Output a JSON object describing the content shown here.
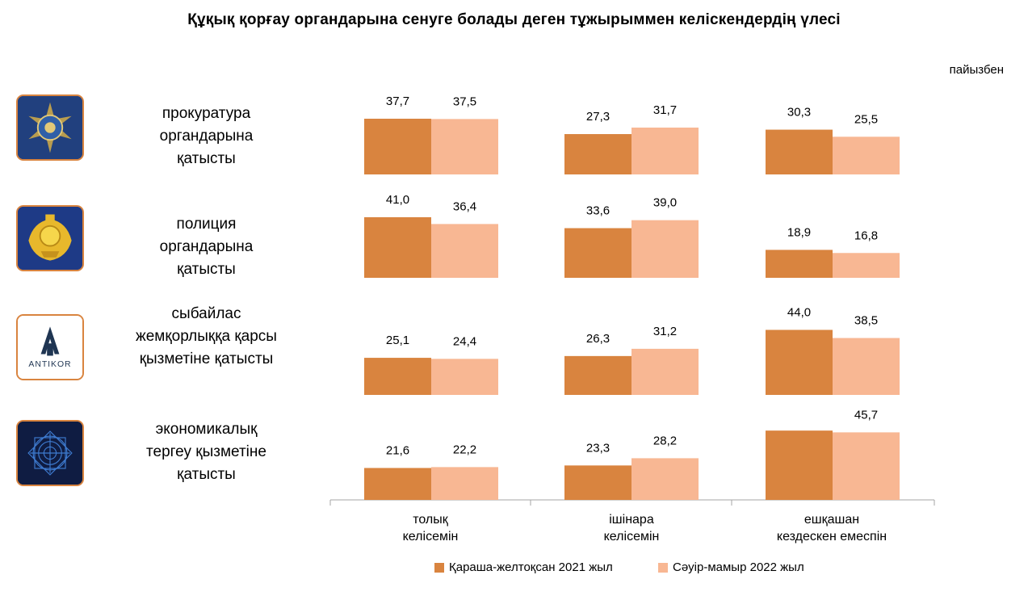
{
  "title": "Құқық қорғау органдарына сенуге болады деген тұжырыммен келіскендердің үлесі",
  "unit_note": "пайызбен",
  "colors": {
    "series1": "#D9843F",
    "series2": "#F8B793",
    "axis": "#A6A6A6"
  },
  "rows": [
    {
      "label": "прокуратура\nоргандарына\nқатысты",
      "icon": "prosecutor-emblem-icon"
    },
    {
      "label": "полиция\nоргандарына\nқатысты",
      "icon": "police-emblem-icon"
    },
    {
      "label": "сыбайлас\nжемқорлыққа қарсы\nқызметіне қатысты",
      "icon": "antikor-logo-icon",
      "logo_text": "ANTIKOR"
    },
    {
      "label": "экономикалық\nтергеу қызметіне\nқатысты",
      "icon": "economic-investigation-emblem-icon"
    }
  ],
  "chart_data": {
    "type": "bar",
    "categories": [
      "толық\nкелісемін",
      "ішінара\nкелісемін",
      "ешқашан\nкездескен емеспін"
    ],
    "series": [
      {
        "name": "Қараша-желтоқсан 2021 жыл",
        "values": [
          [
            37.7,
            27.3,
            30.3
          ],
          [
            41.0,
            33.6,
            18.9
          ],
          [
            25.1,
            26.3,
            44.0
          ],
          [
            21.6,
            23.3,
            null
          ]
        ]
      },
      {
        "name": "Сәуір-мамыр 2022 жыл",
        "values": [
          [
            37.5,
            31.7,
            25.5
          ],
          [
            36.4,
            39.0,
            16.8
          ],
          [
            24.4,
            31.2,
            38.5
          ],
          [
            22.2,
            28.2,
            45.7
          ]
        ]
      }
    ],
    "value_labels": [
      [
        [
          "37,7",
          "27,3",
          "30,3"
        ],
        [
          "41,0",
          "33,6",
          "18,9"
        ],
        [
          "25,1",
          "26,3",
          "44,0"
        ],
        [
          "21,6",
          "23,3",
          ""
        ]
      ],
      [
        [
          "37,5",
          "31,7",
          "25,5"
        ],
        [
          "36,4",
          "39,0",
          "16,8"
        ],
        [
          "24,4",
          "31,2",
          "38,5"
        ],
        [
          "22,2",
          "28,2",
          "45,7"
        ]
      ]
    ],
    "legend_position": "bottom",
    "grid": false
  }
}
